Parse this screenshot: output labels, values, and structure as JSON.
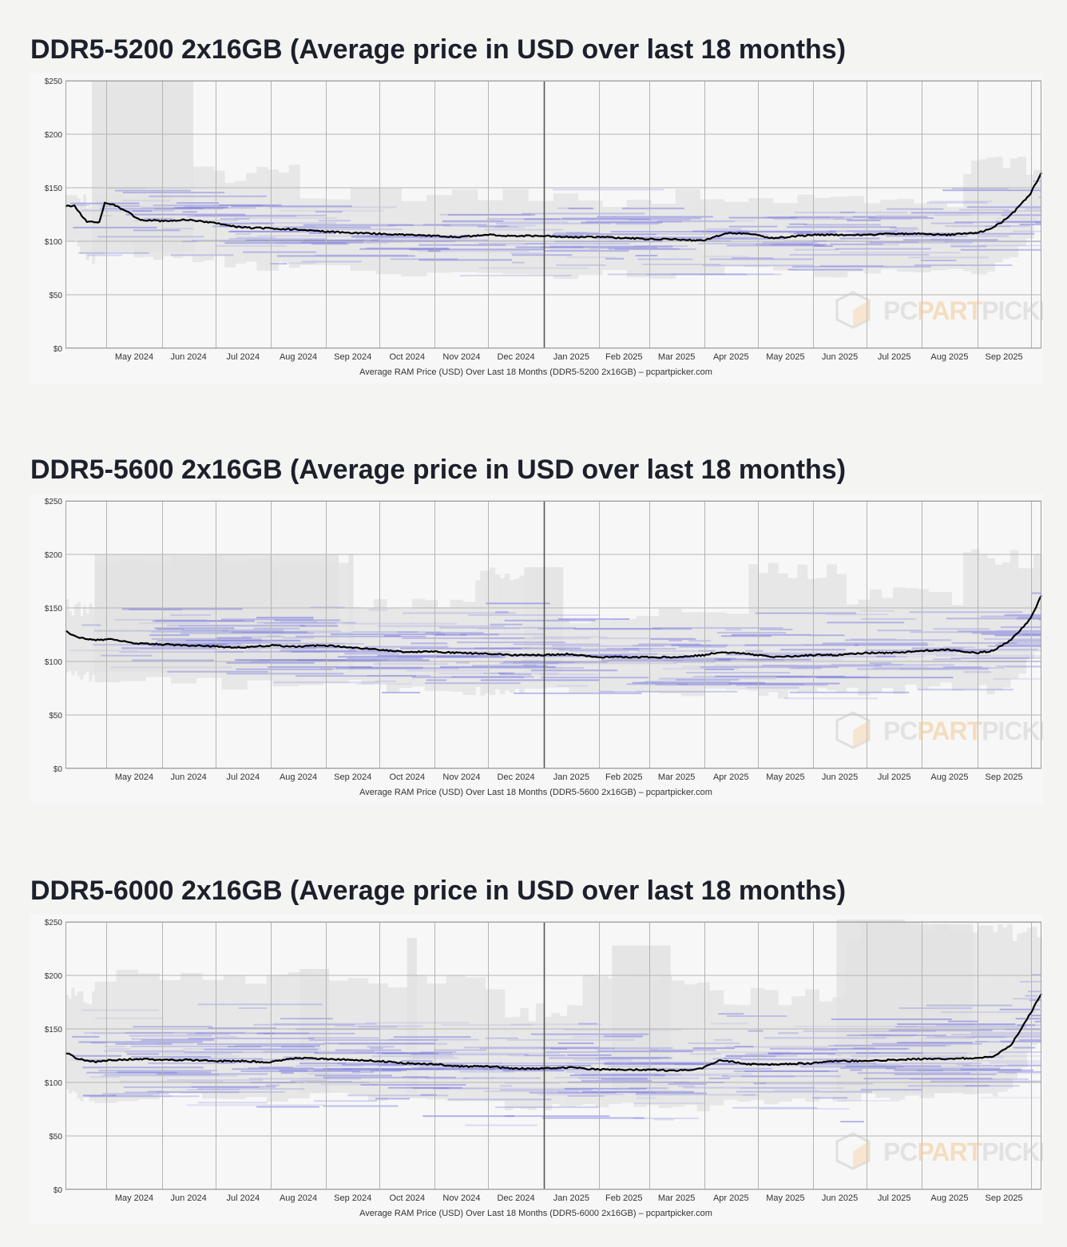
{
  "brand": {
    "grey": "#dcdcdc",
    "orange": "#f3c48a",
    "band": "#7b7be0",
    "line": "#000000"
  },
  "watermark": {
    "part1": "PC",
    "part2": "PART",
    "part3": "PICKER",
    "icon": "box-logo-icon"
  },
  "chart_data": [
    {
      "type": "line",
      "title": "DDR5-5200 2x16GB (Average price in USD over last 18 months)",
      "caption": "Average RAM Price (USD) Over Last 18 Months (DDR5-5200 2x16GB) – pcpartpicker.com",
      "x_tick_labels": [
        "May 2024",
        "Jun 2024",
        "Jul 2024",
        "Aug 2024",
        "Sep 2024",
        "Oct 2024",
        "Nov 2024",
        "Dec 2024",
        "Jan 2025",
        "Feb 2025",
        "Mar 2025",
        "Apr 2025",
        "May 2025",
        "Jun 2025",
        "Jul 2025",
        "Aug 2025",
        "Sep 2025"
      ],
      "y_tick_labels": [
        "$0",
        "$50",
        "$100",
        "$150",
        "$200",
        "$250"
      ],
      "ylim": [
        0,
        250
      ],
      "xlim": [
        "2024-04-08",
        "2025-10-07"
      ],
      "grid": true,
      "series": [
        {
          "x": [
            "2024-04-08",
            "2024-04-13",
            "2024-04-20",
            "2024-04-27",
            "2024-04-30",
            "2024-05-05",
            "2024-05-12",
            "2024-05-20",
            "2024-06-01",
            "2024-06-15",
            "2024-07-01",
            "2024-07-15",
            "2024-08-01",
            "2024-08-15",
            "2024-09-01",
            "2024-09-15",
            "2024-10-01",
            "2024-10-15",
            "2024-11-01",
            "2024-11-15",
            "2024-12-01",
            "2024-12-15",
            "2025-01-01",
            "2025-01-15",
            "2025-02-01",
            "2025-02-15",
            "2025-03-01",
            "2025-03-15",
            "2025-03-25",
            "2025-04-01",
            "2025-04-15",
            "2025-04-25",
            "2025-05-10",
            "2025-06-01",
            "2025-06-15",
            "2025-07-01",
            "2025-07-15",
            "2025-08-01",
            "2025-08-15",
            "2025-09-01",
            "2025-09-08",
            "2025-09-15",
            "2025-09-22",
            "2025-10-01",
            "2025-10-07"
          ],
          "y": [
            133,
            133,
            118,
            118,
            136,
            134,
            128,
            120,
            119,
            120,
            117,
            113,
            112,
            111,
            109,
            108,
            107,
            106,
            105,
            104,
            106,
            105,
            105,
            104,
            104,
            103,
            102,
            102,
            101,
            101,
            108,
            107,
            103,
            106,
            106,
            106,
            107,
            107,
            106,
            108,
            111,
            118,
            128,
            145,
            164
          ]
        }
      ]
    },
    {
      "type": "line",
      "title": "DDR5-5600 2x16GB (Average price in USD over last 18 months)",
      "caption": "Average RAM Price (USD) Over Last 18 Months (DDR5-5600 2x16GB) – pcpartpicker.com",
      "x_tick_labels": [
        "May 2024",
        "Jun 2024",
        "Jul 2024",
        "Aug 2024",
        "Sep 2024",
        "Oct 2024",
        "Nov 2024",
        "Dec 2024",
        "Jan 2025",
        "Feb 2025",
        "Mar 2025",
        "Apr 2025",
        "May 2025",
        "Jun 2025",
        "Jul 2025",
        "Aug 2025",
        "Sep 2025"
      ],
      "y_tick_labels": [
        "$0",
        "$50",
        "$100",
        "$150",
        "$200",
        "$250"
      ],
      "ylim": [
        0,
        250
      ],
      "xlim": [
        "2024-04-08",
        "2025-10-07"
      ],
      "grid": true,
      "series": [
        {
          "x": [
            "2024-04-08",
            "2024-04-15",
            "2024-04-25",
            "2024-05-05",
            "2024-05-15",
            "2024-06-01",
            "2024-06-15",
            "2024-07-01",
            "2024-07-15",
            "2024-08-01",
            "2024-08-15",
            "2024-09-01",
            "2024-09-15",
            "2024-10-01",
            "2024-10-15",
            "2024-11-01",
            "2024-11-15",
            "2024-12-01",
            "2024-12-15",
            "2025-01-01",
            "2025-01-15",
            "2025-02-01",
            "2025-02-15",
            "2025-03-01",
            "2025-03-15",
            "2025-04-01",
            "2025-04-10",
            "2025-04-25",
            "2025-05-10",
            "2025-06-01",
            "2025-06-15",
            "2025-07-01",
            "2025-07-15",
            "2025-08-01",
            "2025-08-15",
            "2025-09-01",
            "2025-09-10",
            "2025-09-20",
            "2025-10-01",
            "2025-10-07"
          ],
          "y": [
            128,
            122,
            120,
            121,
            117,
            116,
            115,
            114,
            113,
            115,
            114,
            115,
            113,
            111,
            109,
            109,
            108,
            107,
            106,
            106,
            107,
            104,
            104,
            104,
            104,
            106,
            109,
            107,
            104,
            106,
            106,
            108,
            108,
            110,
            111,
            108,
            110,
            120,
            140,
            162
          ]
        }
      ]
    },
    {
      "type": "line",
      "title": "DDR5-6000 2x16GB (Average price in USD over last 18 months)",
      "caption": "Average RAM Price (USD) Over Last 18 Months (DDR5-6000 2x16GB) – pcpartpicker.com",
      "x_tick_labels": [
        "May 2024",
        "Jun 2024",
        "Jul 2024",
        "Aug 2024",
        "Sep 2024",
        "Oct 2024",
        "Nov 2024",
        "Dec 2024",
        "Jan 2025",
        "Feb 2025",
        "Mar 2025",
        "Apr 2025",
        "May 2025",
        "Jun 2025",
        "Jul 2025",
        "Aug 2025",
        "Sep 2025"
      ],
      "y_tick_labels": [
        "$0",
        "$50",
        "$100",
        "$150",
        "$200",
        "$250"
      ],
      "ylim": [
        0,
        250
      ],
      "xlim": [
        "2024-04-08",
        "2025-10-07"
      ],
      "grid": true,
      "series": [
        {
          "x": [
            "2024-04-08",
            "2024-04-15",
            "2024-04-25",
            "2024-05-05",
            "2024-05-20",
            "2024-06-01",
            "2024-06-15",
            "2024-07-01",
            "2024-07-15",
            "2024-08-01",
            "2024-08-15",
            "2024-09-01",
            "2024-09-15",
            "2024-10-01",
            "2024-10-15",
            "2024-11-01",
            "2024-11-15",
            "2024-12-01",
            "2024-12-15",
            "2025-01-01",
            "2025-01-15",
            "2025-02-01",
            "2025-02-15",
            "2025-03-01",
            "2025-03-15",
            "2025-03-25",
            "2025-04-01",
            "2025-04-10",
            "2025-04-25",
            "2025-05-10",
            "2025-06-01",
            "2025-06-15",
            "2025-07-01",
            "2025-07-15",
            "2025-08-01",
            "2025-08-15",
            "2025-09-01",
            "2025-09-10",
            "2025-09-20",
            "2025-10-01",
            "2025-10-07"
          ],
          "y": [
            128,
            122,
            119,
            121,
            122,
            121,
            121,
            120,
            120,
            119,
            123,
            122,
            121,
            120,
            118,
            117,
            115,
            115,
            113,
            113,
            114,
            112,
            112,
            112,
            111,
            112,
            114,
            121,
            117,
            117,
            118,
            120,
            120,
            121,
            122,
            122,
            123,
            124,
            135,
            165,
            183
          ]
        }
      ]
    }
  ]
}
